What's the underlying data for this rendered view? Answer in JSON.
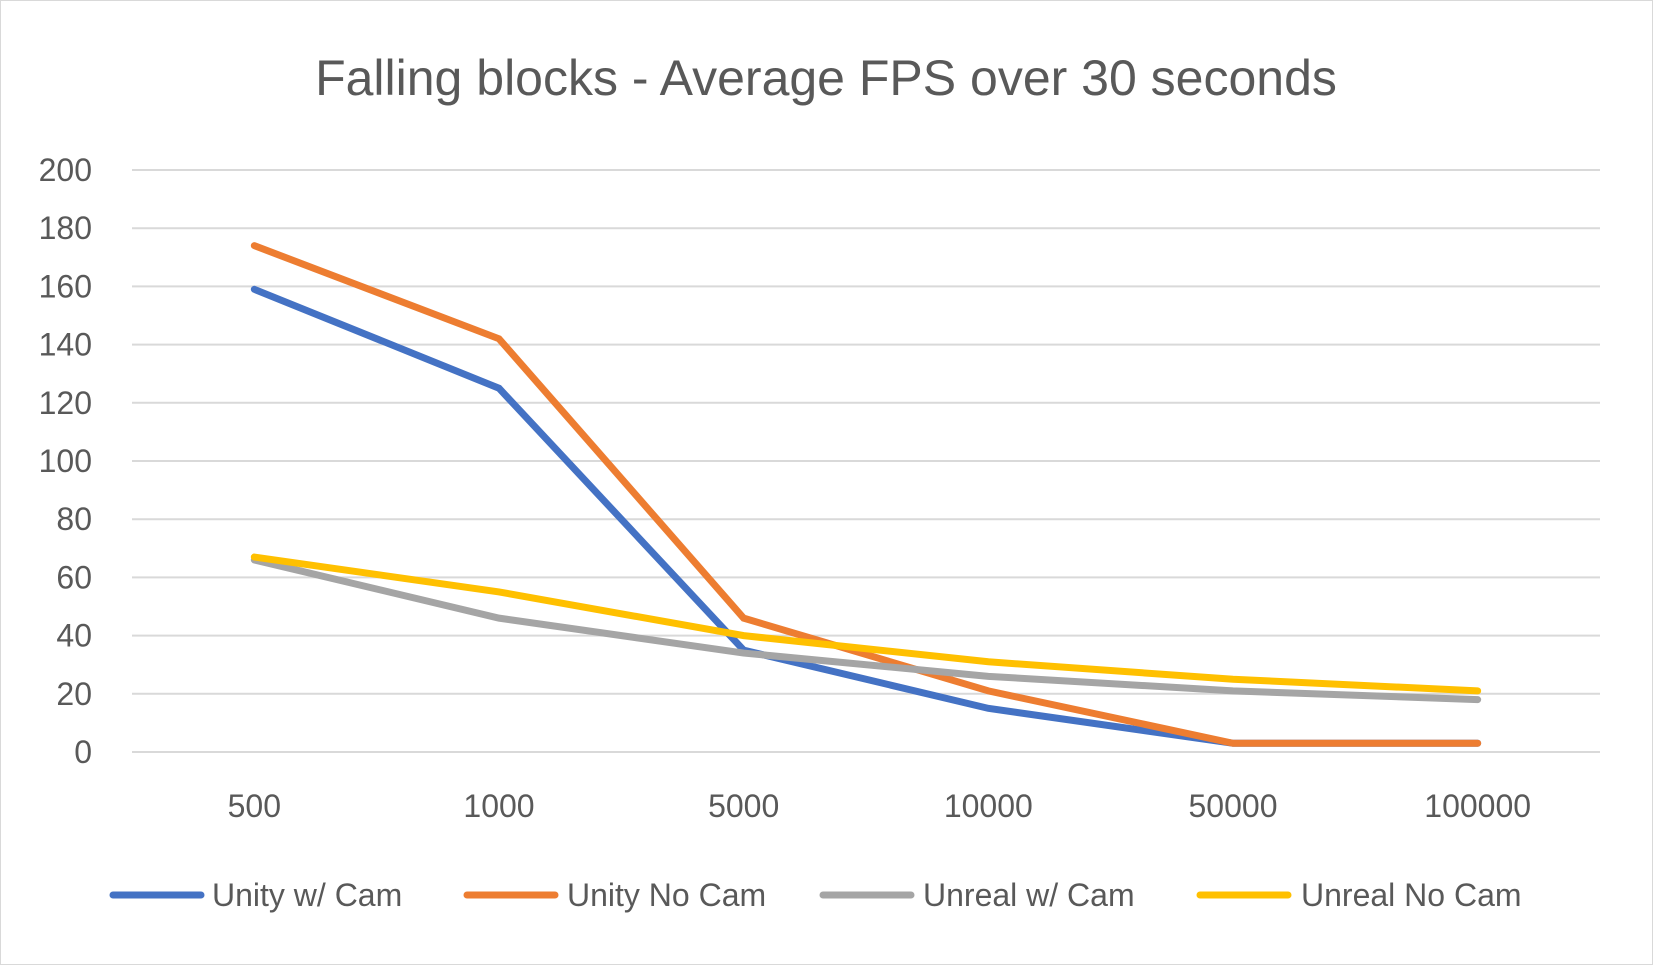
{
  "chart_data": {
    "type": "line",
    "title": "Falling blocks - Average FPS over 30 seconds",
    "xlabel": "",
    "ylabel": "",
    "categories": [
      "500",
      "1000",
      "5000",
      "10000",
      "50000",
      "100000"
    ],
    "ylim": [
      0,
      200
    ],
    "yticks": [
      "0",
      "20",
      "40",
      "60",
      "80",
      "100",
      "120",
      "140",
      "160",
      "180",
      "200"
    ],
    "grid": true,
    "legend_position": "bottom",
    "series": [
      {
        "name": "Unity w/ Cam",
        "color": "#4472c4",
        "values": [
          159,
          125,
          35,
          15,
          3,
          3
        ]
      },
      {
        "name": "Unity No Cam",
        "color": "#ed7d31",
        "values": [
          174,
          142,
          46,
          21,
          3,
          3
        ]
      },
      {
        "name": "Unreal w/ Cam",
        "color": "#a5a5a5",
        "values": [
          66,
          46,
          34,
          26,
          21,
          18
        ]
      },
      {
        "name": "Unreal No Cam",
        "color": "#ffc000",
        "values": [
          67,
          55,
          40,
          31,
          25,
          21
        ]
      }
    ]
  }
}
